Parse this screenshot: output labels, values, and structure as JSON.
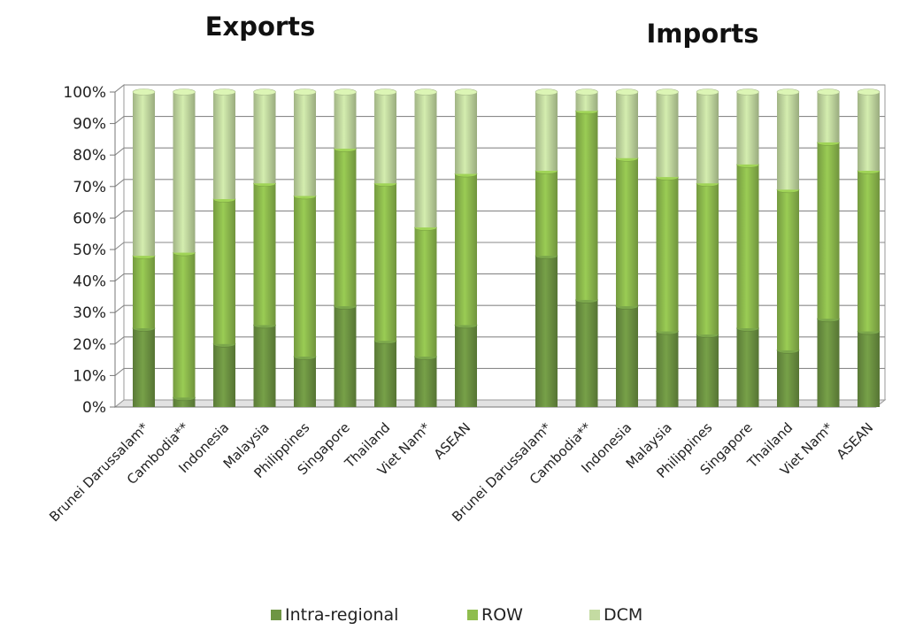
{
  "chart_data": {
    "type": "bar",
    "stacked": true,
    "percent": true,
    "colors": {
      "Intra-regional": "#6e9543",
      "ROW": "#8fbd4e",
      "DCM": "#c4dba2"
    },
    "yticks": [
      "0%",
      "10%",
      "20%",
      "30%",
      "40%",
      "50%",
      "60%",
      "70%",
      "80%",
      "90%",
      "100%"
    ],
    "ylim": [
      0,
      100
    ],
    "grid": true,
    "legend_position": "bottom",
    "legend": [
      "Intra-regional",
      "ROW",
      "DCM"
    ],
    "panels": [
      {
        "title": "Exports",
        "categories": [
          "Brunei Darussalam*",
          "Cambodia**",
          "Indonesia",
          "Malaysia",
          "Philippines",
          "Singapore",
          "Thailand",
          "Viet Nam*",
          "ASEAN"
        ],
        "series": [
          {
            "name": "Intra-regional",
            "values": [
              25,
              3,
              20,
              26,
              16,
              32,
              21,
              16,
              26
            ]
          },
          {
            "name": "ROW",
            "values": [
              23,
              46,
              46,
              45,
              51,
              50,
              50,
              41,
              48
            ]
          },
          {
            "name": "DCM",
            "values": [
              52,
              51,
              34,
              29,
              33,
              18,
              29,
              43,
              26
            ]
          }
        ]
      },
      {
        "title": "Imports",
        "categories": [
          "Brunei Darussalam*",
          "Cambodia**",
          "Indonesia",
          "Malaysia",
          "Philippines",
          "Singapore",
          "Thailand",
          "Viet Nam*",
          "ASEAN"
        ],
        "series": [
          {
            "name": "Intra-regional",
            "values": [
              48,
              34,
              32,
              24,
              23,
              25,
              18,
              28,
              24
            ]
          },
          {
            "name": "ROW",
            "values": [
              27,
              60,
              47,
              49,
              48,
              52,
              51,
              56,
              51
            ]
          },
          {
            "name": "DCM",
            "values": [
              25,
              6,
              21,
              27,
              29,
              23,
              31,
              16,
              25
            ]
          }
        ]
      }
    ]
  }
}
